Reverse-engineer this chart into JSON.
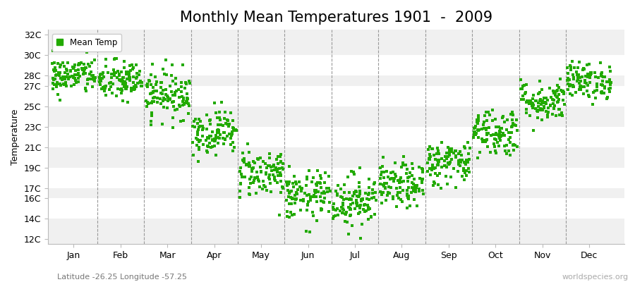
{
  "title": "Monthly Mean Temperatures 1901  -  2009",
  "ylabel": "Temperature",
  "xlabel_labels": [
    "Jan",
    "Feb",
    "Mar",
    "Apr",
    "May",
    "Jun",
    "Jul",
    "Aug",
    "Sep",
    "Oct",
    "Nov",
    "Dec"
  ],
  "ytick_labels": [
    "12C",
    "14C",
    "16C",
    "17C",
    "19C",
    "21C",
    "23C",
    "25C",
    "27C",
    "28C",
    "30C",
    "32C"
  ],
  "ytick_values": [
    12,
    14,
    16,
    17,
    19,
    21,
    23,
    25,
    27,
    28,
    30,
    32
  ],
  "ylim": [
    11.5,
    32.5
  ],
  "dot_color": "#22aa00",
  "legend_label": "Mean Temp",
  "bg_color": "#ffffff",
  "subtitle": "Latitude -26.25 Longitude -57.25",
  "watermark": "worldspecies.org",
  "monthly_means": [
    28.0,
    27.5,
    26.2,
    22.5,
    18.5,
    16.2,
    15.8,
    17.2,
    19.5,
    22.5,
    25.5,
    27.5
  ],
  "monthly_stds": [
    0.9,
    1.0,
    1.2,
    1.1,
    1.2,
    1.2,
    1.3,
    1.1,
    1.1,
    1.2,
    1.0,
    0.9
  ],
  "n_years": 109,
  "seed": 42,
  "title_fontsize": 15,
  "axis_label_fontsize": 9,
  "tick_fontsize": 9,
  "band_colors": [
    "#f0f0f0",
    "#ffffff"
  ],
  "vline_color": "#999999",
  "dashed_vlines": [
    1.5,
    2.5,
    3.5,
    4.5,
    5.5,
    6.5,
    7.5,
    8.5,
    9.5,
    10.5,
    11.5
  ]
}
